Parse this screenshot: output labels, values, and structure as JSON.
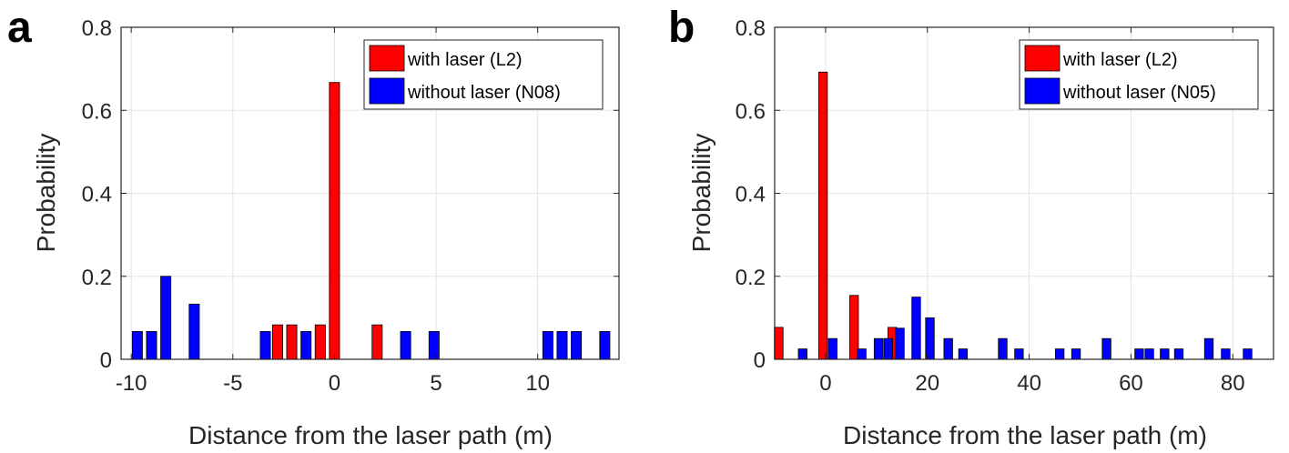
{
  "chart_data": [
    {
      "panel_label": "a",
      "type": "bar",
      "xlabel": "Distance from the laser path (m)",
      "ylabel": "Probability",
      "xlim": [
        -10.5,
        14
      ],
      "ylim": [
        0,
        0.8
      ],
      "xticks": [
        -10,
        -5,
        0,
        5,
        10
      ],
      "yticks": [
        0,
        0.2,
        0.4,
        0.6,
        0.8
      ],
      "xtick_labels": [
        "-10",
        "-5",
        "0",
        "5",
        "10"
      ],
      "ytick_labels": [
        "0",
        "0.2",
        "0.4",
        "0.6",
        "0.8"
      ],
      "bar_width": 0.5,
      "grid": true,
      "legend_position": "top-right",
      "series": [
        {
          "name": "with laser (L2)",
          "color": "#ff0000",
          "x": [
            -2.8,
            -2.1,
            -0.7,
            0,
            2.1
          ],
          "values": [
            0.083,
            0.083,
            0.083,
            0.667,
            0.083
          ]
        },
        {
          "name": "without laser (N08)",
          "color": "#0000ff",
          "x": [
            -9.7,
            -9.0,
            -8.3,
            -6.9,
            -3.4,
            -1.4,
            3.5,
            4.9,
            10.5,
            11.2,
            11.9,
            13.3
          ],
          "values": [
            0.067,
            0.067,
            0.2,
            0.133,
            0.067,
            0.067,
            0.067,
            0.067,
            0.067,
            0.067,
            0.067,
            0.067
          ]
        }
      ]
    },
    {
      "panel_label": "b",
      "type": "bar",
      "xlabel": "Distance from the laser path (m)",
      "ylabel": "Probability",
      "xlim": [
        -10,
        88
      ],
      "ylim": [
        0,
        0.8
      ],
      "xticks": [
        0,
        20,
        40,
        60,
        80
      ],
      "yticks": [
        0,
        0.2,
        0.4,
        0.6,
        0.8
      ],
      "xtick_labels": [
        "0",
        "20",
        "40",
        "60",
        "80"
      ],
      "ytick_labels": [
        "0",
        "0.2",
        "0.4",
        "0.6",
        "0.8"
      ],
      "bar_width": 1.7,
      "grid": true,
      "legend_position": "top-right",
      "series": [
        {
          "name": "with laser (L2)",
          "color": "#ff0000",
          "x": [
            -9.2,
            -0.5,
            5.6,
            13.1
          ],
          "values": [
            0.077,
            0.692,
            0.154,
            0.077
          ]
        },
        {
          "name": "without laser (N05)",
          "color": "#0000ff",
          "x": [
            -4.5,
            1.4,
            7.1,
            10.4,
            12.3,
            14.6,
            17.8,
            20.5,
            24.1,
            27.0,
            34.8,
            38.0,
            46.0,
            49.2,
            55.2,
            61.6,
            63.6,
            66.6,
            69.4,
            75.3,
            78.6,
            82.9
          ],
          "values": [
            0.025,
            0.05,
            0.025,
            0.05,
            0.05,
            0.075,
            0.15,
            0.1,
            0.05,
            0.025,
            0.05,
            0.025,
            0.025,
            0.025,
            0.05,
            0.025,
            0.025,
            0.025,
            0.025,
            0.05,
            0.025,
            0.025
          ]
        }
      ]
    }
  ]
}
